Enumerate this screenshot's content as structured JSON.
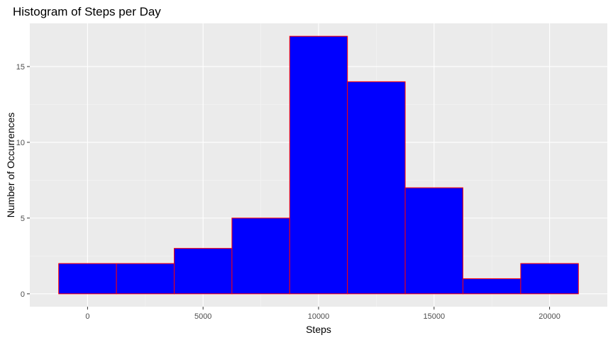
{
  "chart_data": {
    "type": "bar",
    "title": "Histogram of Steps per Day",
    "xlabel": "Steps",
    "ylabel": "Number of Occurrences",
    "bin_width": 2500,
    "bins": [
      {
        "start": -1250,
        "end": 1250,
        "count": 2
      },
      {
        "start": 1250,
        "end": 3750,
        "count": 2
      },
      {
        "start": 3750,
        "end": 6250,
        "count": 3
      },
      {
        "start": 6250,
        "end": 8750,
        "count": 5
      },
      {
        "start": 8750,
        "end": 11250,
        "count": 17
      },
      {
        "start": 11250,
        "end": 13750,
        "count": 14
      },
      {
        "start": 13750,
        "end": 16250,
        "count": 7
      },
      {
        "start": 16250,
        "end": 18750,
        "count": 1
      },
      {
        "start": 18750,
        "end": 21250,
        "count": 2
      }
    ],
    "xlim": [
      -2500,
      22500
    ],
    "ylim": [
      -0.85,
      17.85
    ],
    "x_ticks": [
      0,
      5000,
      10000,
      15000,
      20000
    ],
    "x_tick_labels": [
      "0",
      "5000",
      "10000",
      "15000",
      "20000"
    ],
    "y_ticks": [
      0,
      5,
      10,
      15
    ],
    "y_tick_labels": [
      "0",
      "5",
      "10",
      "15"
    ],
    "grid": true,
    "colors": {
      "bar_fill": "#0000ff",
      "bar_outline": "#ff0000",
      "panel_background": "#ebebeb",
      "grid_major": "#ffffff",
      "grid_minor": "#f5f5f5"
    }
  }
}
